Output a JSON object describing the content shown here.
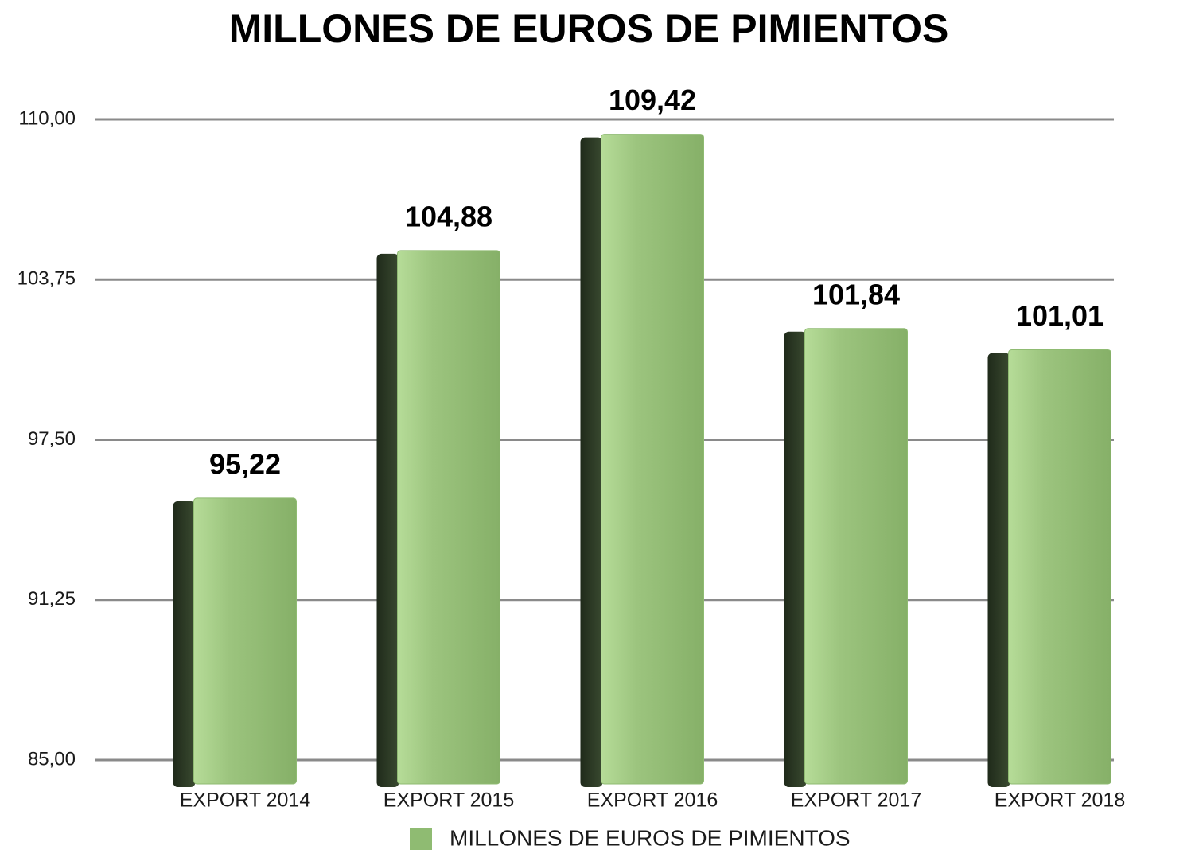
{
  "chart_data": {
    "type": "bar",
    "title": "MILLONES DE EUROS DE PIMIENTOS",
    "categories": [
      "EXPORT 2014",
      "EXPORT 2015",
      "EXPORT 2016",
      "EXPORT 2017",
      "EXPORT 2018"
    ],
    "series": [
      {
        "name": "MILLONES DE EUROS DE PIMIENTOS",
        "color": "#8fbb72",
        "values": [
          95.22,
          104.88,
          109.42,
          101.84,
          101.01
        ],
        "value_labels": [
          "95,22",
          "104,88",
          "109,42",
          "101,84",
          "101,01"
        ]
      }
    ],
    "ylim": [
      85,
      110
    ],
    "yticks": [
      {
        "value": 85,
        "label": "85,00"
      },
      {
        "value": 91.25,
        "label": "91,25"
      },
      {
        "value": 97.5,
        "label": "97,50"
      },
      {
        "value": 103.75,
        "label": "103,75"
      },
      {
        "value": 110,
        "label": "110,00"
      }
    ],
    "grid": true,
    "legend": "bottom"
  }
}
